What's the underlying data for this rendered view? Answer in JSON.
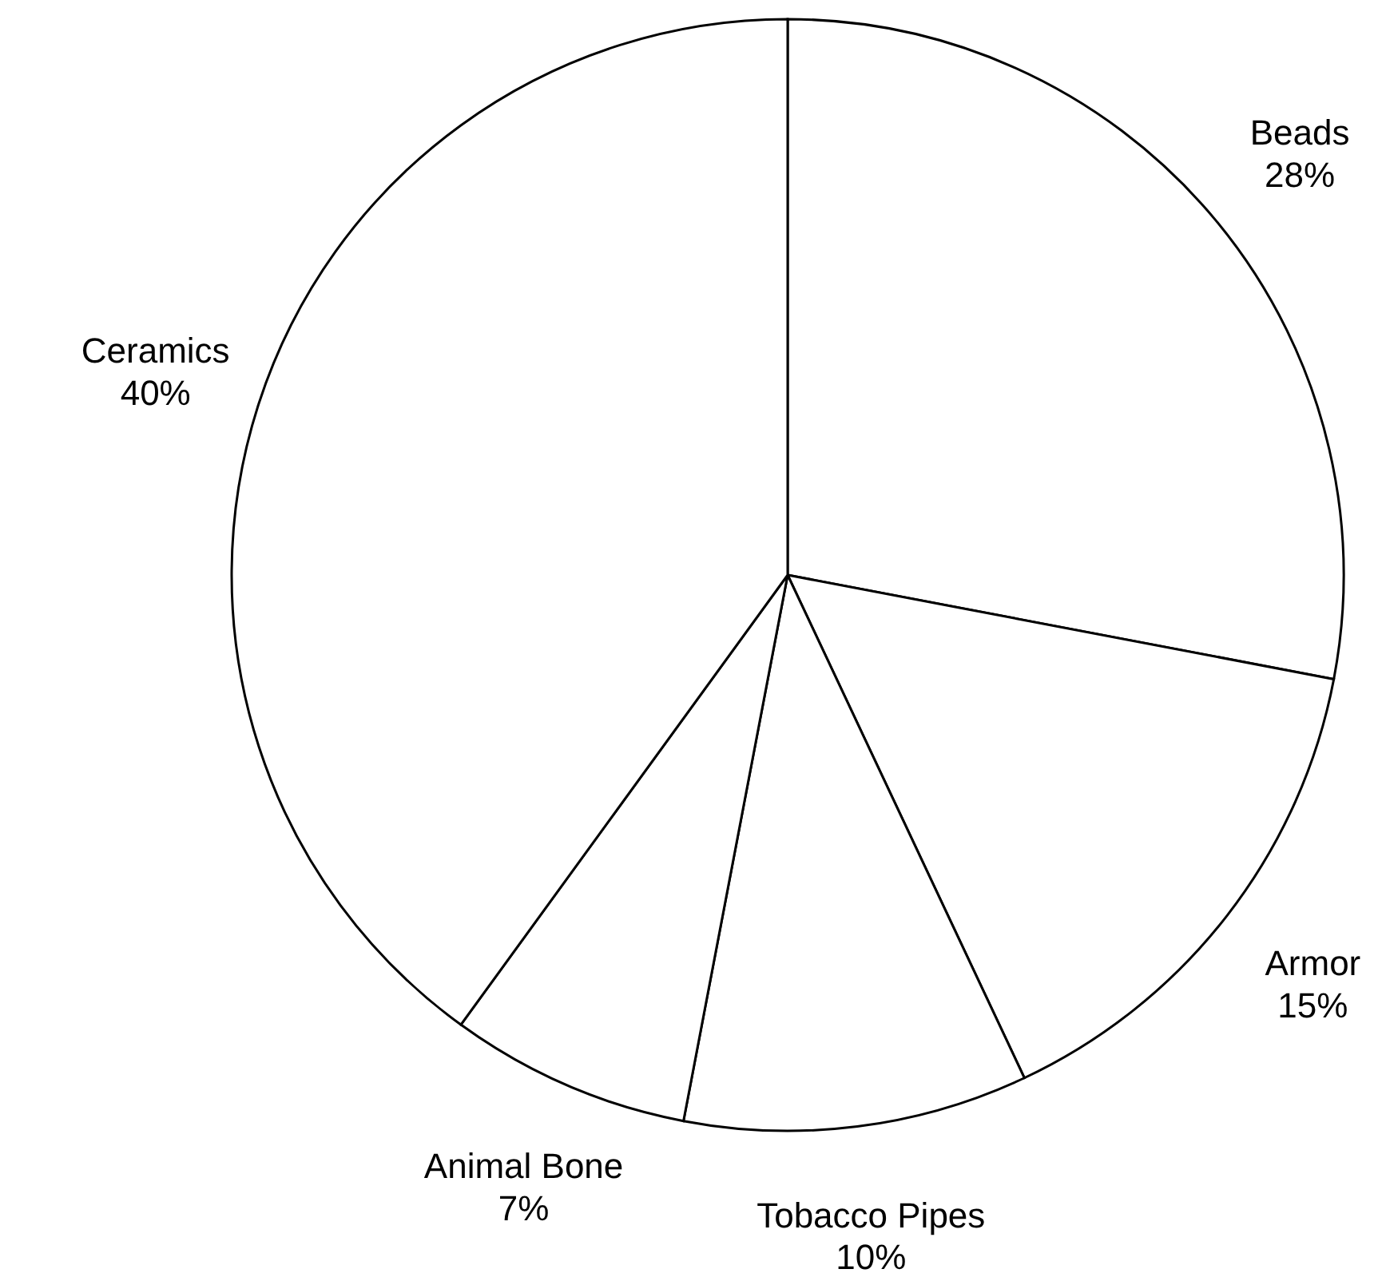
{
  "chart_data": {
    "type": "pie",
    "categories": [
      "Beads",
      "Armor",
      "Tobacco Pipes",
      "Animal Bone",
      "Ceramics"
    ],
    "values": [
      28,
      15,
      10,
      7,
      40
    ],
    "value_labels": [
      "28%",
      "15%",
      "10%",
      "7%",
      "40%"
    ],
    "colors": [
      "#ffffff",
      "#ffffff",
      "#ffffff",
      "#ffffff",
      "#ffffff"
    ],
    "legend": false
  }
}
